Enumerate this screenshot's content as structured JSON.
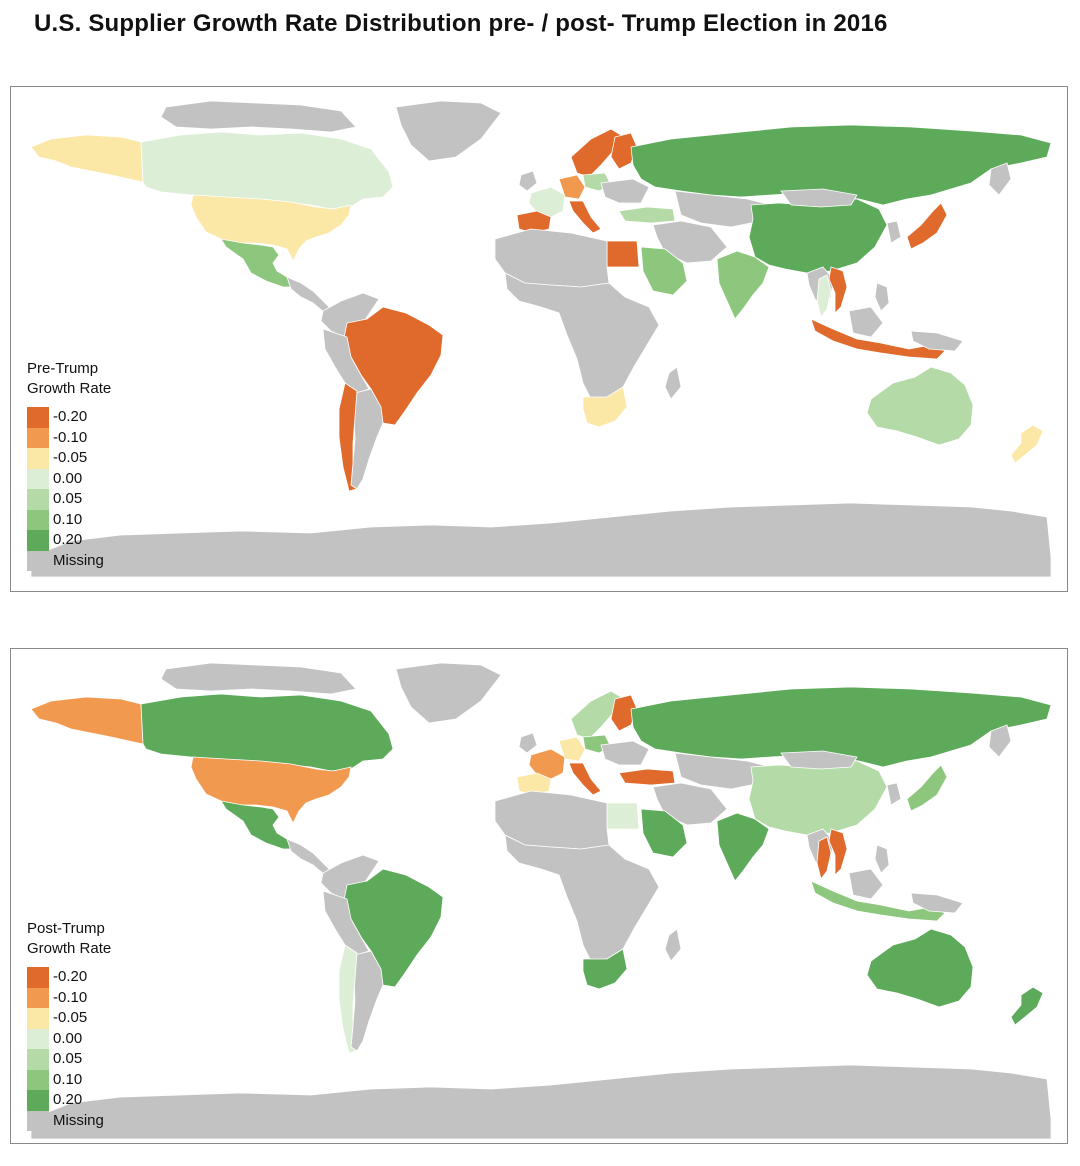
{
  "title": "U.S. Supplier Growth Rate Distribution pre- / post- Trump Election in 2016",
  "colors": {
    "ocean": "#ffffff",
    "land_missing": "#c2c2c2",
    "border": "#ffffff"
  },
  "legend_bins": [
    {
      "label": "-0.20",
      "color": "#e06a2c"
    },
    {
      "label": "-0.10",
      "color": "#f19a4f"
    },
    {
      "label": "-0.05",
      "color": "#fbe7a6"
    },
    {
      "label": "0.00",
      "color": "#ddeed6"
    },
    {
      "label": "0.05",
      "color": "#b4dba7"
    },
    {
      "label": "0.10",
      "color": "#8dc77e"
    },
    {
      "label": "0.20",
      "color": "#5caa5a"
    },
    {
      "label": "Missing",
      "color": "#c2c2c2"
    }
  ],
  "panels": [
    {
      "legend_title_line1": "Pre-Trump",
      "legend_title_line2": "Growth Rate",
      "countries": {
        "alaska": "-0.05",
        "canada": "0.00",
        "usa": "-0.05",
        "mexico": "0.10",
        "brazil": "-0.20",
        "chile": "-0.20",
        "argentina": "missing",
        "spain": "-0.20",
        "france": "0.00",
        "germany": "-0.10",
        "italy": "-0.20",
        "poland": "0.05",
        "scandinavia": "-0.20",
        "finland": "-0.20",
        "russia": "0.20",
        "turkey": "0.05",
        "egypt": "-0.20",
        "saudi": "0.10",
        "india": "0.10",
        "china": "0.20",
        "japan": "-0.20",
        "vietnam": "-0.20",
        "thailand": "0.00",
        "indonesia": "-0.20",
        "australia": "0.05",
        "nz": "-0.05",
        "south_africa": "-0.05"
      }
    },
    {
      "legend_title_line1": "Post-Trump",
      "legend_title_line2": "Growth Rate",
      "countries": {
        "alaska": "-0.10",
        "canada": "0.20",
        "usa": "-0.10",
        "mexico": "0.20",
        "brazil": "0.20",
        "chile": "0.00",
        "argentina": "missing",
        "spain": "-0.05",
        "france": "-0.10",
        "germany": "-0.05",
        "italy": "-0.20",
        "poland": "0.10",
        "scandinavia": "0.05",
        "finland": "-0.20",
        "russia": "0.20",
        "turkey": "-0.20",
        "egypt": "0.00",
        "saudi": "0.20",
        "india": "0.20",
        "china": "0.05",
        "japan": "0.10",
        "vietnam": "-0.20",
        "thailand": "-0.20",
        "indonesia": "0.10",
        "australia": "0.20",
        "nz": "0.20",
        "south_africa": "0.20"
      }
    }
  ]
}
